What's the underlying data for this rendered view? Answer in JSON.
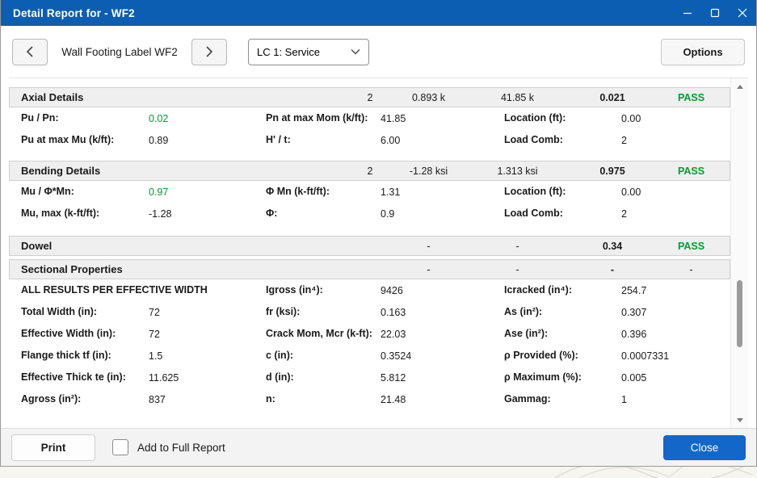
{
  "window": {
    "title": "Detail Report for - WF2",
    "controls": {
      "minimize": "minimize",
      "maximize": "maximize",
      "close": "close"
    }
  },
  "toolbar": {
    "prev_icon": "chevron-left",
    "next_icon": "chevron-right",
    "label": "Wall Footing Label WF2",
    "load_combo_selected": "LC 1: Service",
    "options_label": "Options"
  },
  "report": {
    "sections": [
      {
        "title": "Axial Details",
        "summary": [
          "2",
          "0.893 k",
          "41.85 k",
          "0.021",
          "PASS"
        ],
        "rows": [
          {
            "cells": [
              {
                "text": "Pu / Pn:",
                "kind": "label"
              },
              {
                "text": "0.02",
                "kind": "value",
                "green": true
              },
              {
                "text": "Pn at max Mom (k/ft):",
                "kind": "label"
              },
              {
                "text": "41.85",
                "kind": "value"
              },
              {
                "text": "Location (ft):",
                "kind": "label"
              },
              {
                "text": "0.00",
                "kind": "value"
              }
            ]
          },
          {
            "cells": [
              {
                "text": "Pu at max Mu (k/ft):",
                "kind": "label"
              },
              {
                "text": "0.89",
                "kind": "value"
              },
              {
                "text": "H' / t:",
                "kind": "label"
              },
              {
                "text": "6.00",
                "kind": "value"
              },
              {
                "text": "Load Comb:",
                "kind": "label"
              },
              {
                "text": "2",
                "kind": "value"
              }
            ]
          }
        ]
      },
      {
        "title": "Bending Details",
        "summary": [
          "2",
          "-1.28 ksi",
          "1.313 ksi",
          "0.975",
          "PASS"
        ],
        "rows": [
          {
            "cells": [
              {
                "text": "Mu / Φ*Mn:",
                "kind": "label"
              },
              {
                "text": "0.97",
                "kind": "value",
                "green": true
              },
              {
                "text": "Φ Mn (k-ft/ft):",
                "kind": "label"
              },
              {
                "text": "1.31",
                "kind": "value"
              },
              {
                "text": "Location (ft):",
                "kind": "label"
              },
              {
                "text": "0.00",
                "kind": "value"
              }
            ]
          },
          {
            "cells": [
              {
                "text": "Mu, max (k-ft/ft):",
                "kind": "label"
              },
              {
                "text": "-1.28",
                "kind": "value"
              },
              {
                "text": "Φ:",
                "kind": "label"
              },
              {
                "text": "0.9",
                "kind": "value"
              },
              {
                "text": "Load Comb:",
                "kind": "label"
              },
              {
                "text": "2",
                "kind": "value"
              }
            ]
          }
        ]
      },
      {
        "title": "Dowel",
        "summary": [
          "",
          "-",
          "-",
          "0.34",
          "PASS"
        ],
        "rows": []
      },
      {
        "title": "Sectional Properties",
        "summary": [
          "",
          "-",
          "-",
          "-",
          "-"
        ],
        "rows": [
          {
            "cells": [
              {
                "text": "ALL RESULTS PER EFFECTIVE WIDTH",
                "kind": "label",
                "span": 2
              },
              {
                "text": "Igross (in⁴):",
                "kind": "label"
              },
              {
                "text": "9426",
                "kind": "value"
              },
              {
                "text": "Icracked (in⁴):",
                "kind": "label"
              },
              {
                "text": "254.7",
                "kind": "value"
              }
            ]
          },
          {
            "cells": [
              {
                "text": "Total Width (in):",
                "kind": "label"
              },
              {
                "text": "72",
                "kind": "value"
              },
              {
                "text": "fr (ksi):",
                "kind": "label"
              },
              {
                "text": "0.163",
                "kind": "value"
              },
              {
                "text": "As (in²):",
                "kind": "label"
              },
              {
                "text": "0.307",
                "kind": "value"
              }
            ]
          },
          {
            "cells": [
              {
                "text": "Effective Width (in):",
                "kind": "label"
              },
              {
                "text": "72",
                "kind": "value"
              },
              {
                "text": "Crack Mom, Mcr (k-ft):",
                "kind": "label"
              },
              {
                "text": "22.03",
                "kind": "value"
              },
              {
                "text": "Ase (in²):",
                "kind": "label"
              },
              {
                "text": "0.396",
                "kind": "value"
              }
            ]
          },
          {
            "cells": [
              {
                "text": "Flange thick tf (in):",
                "kind": "label"
              },
              {
                "text": "1.5",
                "kind": "value"
              },
              {
                "text": "c (in):",
                "kind": "label"
              },
              {
                "text": "0.3524",
                "kind": "value"
              },
              {
                "text": "ρ Provided (%):",
                "kind": "label"
              },
              {
                "text": "0.0007331",
                "kind": "value"
              }
            ]
          },
          {
            "cells": [
              {
                "text": "Effective Thick te (in):",
                "kind": "label"
              },
              {
                "text": "11.625",
                "kind": "value"
              },
              {
                "text": "d (in):",
                "kind": "label"
              },
              {
                "text": "5.812",
                "kind": "value"
              },
              {
                "text": "ρ Maximum (%):",
                "kind": "label"
              },
              {
                "text": "0.005",
                "kind": "value"
              }
            ]
          },
          {
            "cells": [
              {
                "text": "Agross (in²):",
                "kind": "label"
              },
              {
                "text": "837",
                "kind": "value"
              },
              {
                "text": "n:",
                "kind": "label"
              },
              {
                "text": "21.48",
                "kind": "value"
              },
              {
                "text": "Gammag:",
                "kind": "label"
              },
              {
                "text": "1",
                "kind": "value"
              }
            ]
          }
        ]
      }
    ]
  },
  "footer": {
    "print_label": "Print",
    "checkbox_label": "Add to Full Report",
    "checkbox_checked": false,
    "close_label": "Close"
  },
  "colors": {
    "titlebar": "#0B5EB2",
    "accent_button": "#1267C9",
    "pass_green": "#009F2F",
    "section_header_bg": "#EFEFEF"
  }
}
